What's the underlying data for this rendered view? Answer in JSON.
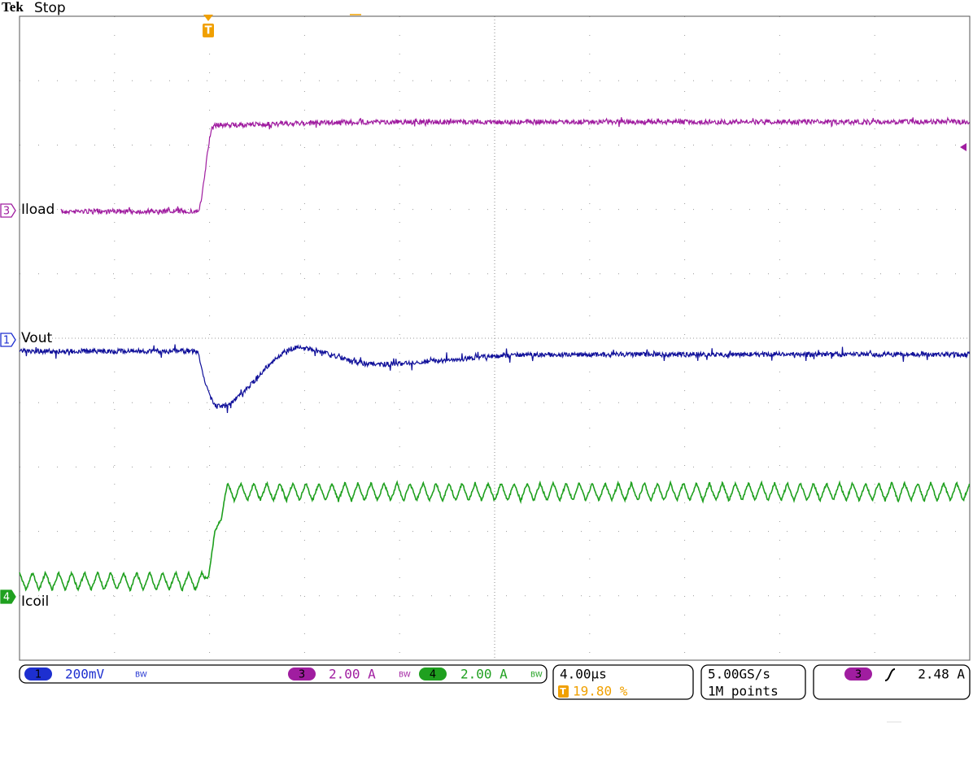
{
  "header": {
    "brand": "Tek",
    "status": "Stop"
  },
  "trigger_marker": "T",
  "channels": [
    {
      "number": "3",
      "label": "Iload"
    },
    {
      "number": "1",
      "label": "Vout"
    },
    {
      "number": "4",
      "label": "Icoil"
    }
  ],
  "readouts": {
    "ch1": {
      "number": "1",
      "scale": "200mV",
      "bw": "BW"
    },
    "ch3": {
      "number": "3",
      "scale": "2.00 A",
      "bw": "BW"
    },
    "ch4": {
      "number": "4",
      "scale": "2.00 A",
      "bw": "BW"
    },
    "timebase": {
      "scale": "4.00µs",
      "trigger_icon": "T",
      "trigger_position": "19.80 %"
    },
    "acquisition": {
      "sample_rate": "5.00GS/s",
      "record_length": "1M points"
    },
    "trigger": {
      "source": "3",
      "level": "2.48 A"
    }
  }
}
